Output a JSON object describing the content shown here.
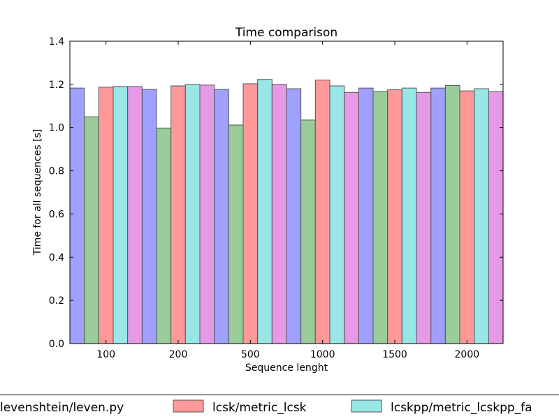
{
  "chart_data": {
    "type": "bar",
    "title": "Time comparison",
    "xlabel": "Sequence lenght",
    "ylabel": "Time for all sequences [s]",
    "ylim": [
      0,
      1.4
    ],
    "yticks": [
      "0.0",
      "0.2",
      "0.4",
      "0.6",
      "0.8",
      "1.0",
      "1.2",
      "1.4"
    ],
    "categories": [
      "100",
      "200",
      "500",
      "1000",
      "1500",
      "2000"
    ],
    "grid": false,
    "legend_placement": "bottom",
    "series": [
      {
        "name": "levenshtein/leven.py",
        "color": "#a0a0ff",
        "values": [
          1.183,
          1.177,
          1.177,
          1.18,
          1.183,
          1.183
        ]
      },
      {
        "name": "",
        "color": "#99cc99",
        "values": [
          1.05,
          0.998,
          1.012,
          1.035,
          1.167,
          1.195
        ]
      },
      {
        "name": "lcsk/metric_lcsk",
        "color": "#ff9999",
        "values": [
          1.187,
          1.193,
          1.203,
          1.22,
          1.175,
          1.17
        ]
      },
      {
        "name": "lcskpp/metric_lcskpp_fa",
        "color": "#99e6e6",
        "values": [
          1.19,
          1.2,
          1.223,
          1.193,
          1.183,
          1.18
        ]
      },
      {
        "name": "",
        "color": "#e699e6",
        "values": [
          1.19,
          1.197,
          1.2,
          1.163,
          1.163,
          1.167
        ]
      }
    ]
  }
}
